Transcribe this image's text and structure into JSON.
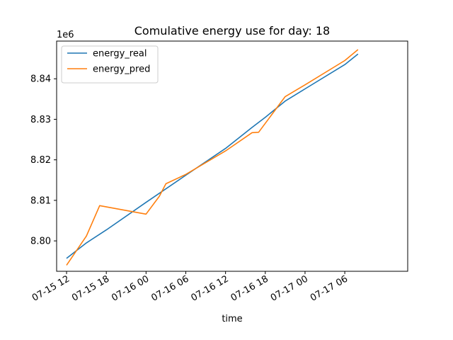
{
  "chart_data": {
    "type": "line",
    "title": "Comulative energy use for day: 18",
    "xlabel": "time",
    "ylabel": "",
    "y_offset_label": "1e6",
    "y_scale": 1000000,
    "xlim": [
      "2024-07-15T10:30:00",
      "2024-07-17T15:30:00"
    ],
    "ylim": [
      8.7925,
      8.8493
    ],
    "x_ticks": [
      {
        "value": "2024-07-15T12:00:00",
        "label": "07-15 12"
      },
      {
        "value": "2024-07-15T18:00:00",
        "label": "07-15 18"
      },
      {
        "value": "2024-07-16T00:00:00",
        "label": "07-16 00"
      },
      {
        "value": "2024-07-16T06:00:00",
        "label": "07-16 06"
      },
      {
        "value": "2024-07-16T12:00:00",
        "label": "07-16 12"
      },
      {
        "value": "2024-07-16T18:00:00",
        "label": "07-16 18"
      },
      {
        "value": "2024-07-17T00:00:00",
        "label": "07-17 00"
      },
      {
        "value": "2024-07-17T06:00:00",
        "label": "07-17 06"
      }
    ],
    "y_ticks": [
      {
        "value": 8.8,
        "label": "8.80"
      },
      {
        "value": 8.81,
        "label": "8.81"
      },
      {
        "value": 8.82,
        "label": "8.82"
      },
      {
        "value": 8.83,
        "label": "8.83"
      },
      {
        "value": 8.84,
        "label": "8.84"
      }
    ],
    "grid": false,
    "legend_position": "top-left",
    "series": [
      {
        "name": "energy_real",
        "color": "#1f77b4",
        "points": [
          {
            "x": "2024-07-15T12:00:00",
            "y": 8.7957
          },
          {
            "x": "2024-07-15T15:00:00",
            "y": 8.7995
          },
          {
            "x": "2024-07-15T18:00:00",
            "y": 8.8027
          },
          {
            "x": "2024-07-16T00:00:00",
            "y": 8.8095
          },
          {
            "x": "2024-07-16T06:00:00",
            "y": 8.8162
          },
          {
            "x": "2024-07-16T12:00:00",
            "y": 8.8228
          },
          {
            "x": "2024-07-16T16:00:00",
            "y": 8.828
          },
          {
            "x": "2024-07-16T18:00:00",
            "y": 8.8305
          },
          {
            "x": "2024-07-16T21:00:00",
            "y": 8.8345
          },
          {
            "x": "2024-07-17T00:00:00",
            "y": 8.8375
          },
          {
            "x": "2024-07-17T06:00:00",
            "y": 8.8435
          },
          {
            "x": "2024-07-17T08:00:00",
            "y": 8.8461
          }
        ]
      },
      {
        "name": "energy_pred",
        "color": "#ff7f0e",
        "points": [
          {
            "x": "2024-07-15T12:00:00",
            "y": 8.794
          },
          {
            "x": "2024-07-15T15:00:00",
            "y": 8.8012
          },
          {
            "x": "2024-07-15T17:00:00",
            "y": 8.8087
          },
          {
            "x": "2024-07-16T00:00:00",
            "y": 8.8066
          },
          {
            "x": "2024-07-16T02:00:00",
            "y": 8.811
          },
          {
            "x": "2024-07-16T03:00:00",
            "y": 8.8141
          },
          {
            "x": "2024-07-16T06:00:00",
            "y": 8.8164
          },
          {
            "x": "2024-07-16T12:00:00",
            "y": 8.8222
          },
          {
            "x": "2024-07-16T16:00:00",
            "y": 8.8267
          },
          {
            "x": "2024-07-16T17:00:00",
            "y": 8.8268
          },
          {
            "x": "2024-07-16T21:00:00",
            "y": 8.8356
          },
          {
            "x": "2024-07-17T00:00:00",
            "y": 8.8385
          },
          {
            "x": "2024-07-17T06:00:00",
            "y": 8.8445
          },
          {
            "x": "2024-07-17T08:00:00",
            "y": 8.8472
          }
        ]
      }
    ]
  }
}
